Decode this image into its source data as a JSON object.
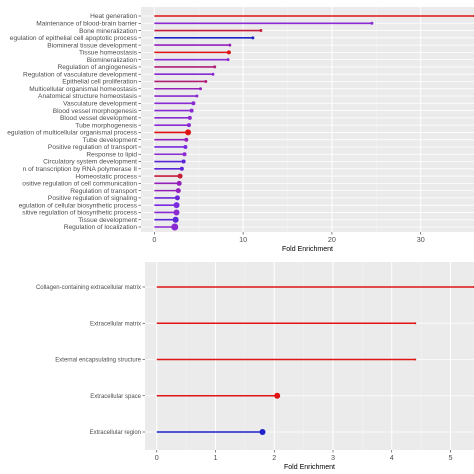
{
  "chart_data": [
    {
      "type": "lollipop",
      "xlabel": "Fold Enrichment",
      "xlim": [
        -1.5,
        36
      ],
      "xticks": [
        0,
        10,
        20,
        30
      ],
      "grid": true,
      "color_low": "#1f1fcc",
      "color_high": "#e01414",
      "categories": [
        "Heat generation",
        "Maintenance of blood-brain barrier",
        "Bone mineralization",
        "egulation of epithelial cell apoptotic process",
        "Biomineral tissue development",
        "Tissue homeostasis",
        "Biomineralization",
        "Regulation of angiogenesis",
        "Regulation of vasculature development",
        "Epithelial cell proliferation",
        "Multicellular organismal homeostasis",
        "Anatomical structure homeostasis",
        "Vasculature development",
        "Blood vessel morphogenesis",
        "Blood vessel development",
        "Tube morphogenesis",
        "egulation of multicellular organismal process",
        "Tube development",
        "Positive regulation of transport",
        "Response to lipid",
        "Circulatory system development",
        "n of transcription by RNA polymerase II",
        "Homeostatic process",
        "ositive regulation of cell communication",
        "Regulation of transport",
        "Positive regulation of signaling",
        "egulation of cellular biosynthetic process",
        "sitive regulation of biosynthetic process",
        "Tissue development",
        "Regulation of localization"
      ],
      "values": [
        36.5,
        24.5,
        12.0,
        11.1,
        8.5,
        8.4,
        8.3,
        6.8,
        6.6,
        5.8,
        5.2,
        4.8,
        4.4,
        4.2,
        4.0,
        3.9,
        3.8,
        3.6,
        3.5,
        3.4,
        3.3,
        3.1,
        2.9,
        2.8,
        2.7,
        2.6,
        2.5,
        2.5,
        2.4,
        2.3
      ],
      "point_colors": [
        "#e01414",
        "#8a2ad2",
        "#c81c3c",
        "#2020c8",
        "#9420bc",
        "#e01414",
        "#8a2ad2",
        "#b01e78",
        "#8a2ad2",
        "#b01e78",
        "#9420bc",
        "#8a2ad2",
        "#8a2ad2",
        "#8a2ad2",
        "#8a2ad2",
        "#8a2ad2",
        "#e01414",
        "#9420bc",
        "#7a2ae0",
        "#8a2ad2",
        "#5a24d8",
        "#5a24d8",
        "#c81c3c",
        "#9420bc",
        "#9420bc",
        "#6a26d8",
        "#7a2ae0",
        "#8a2ad2",
        "#5a24d8",
        "#8a2ad2"
      ],
      "point_sizes": [
        1,
        1.5,
        1.5,
        1.5,
        1.5,
        2,
        1.5,
        1.5,
        1.5,
        1.5,
        1.5,
        1.5,
        2,
        2,
        2,
        2,
        3,
        2,
        2,
        2,
        2,
        2,
        2.5,
        2.5,
        2.5,
        2.5,
        3,
        3,
        3,
        3.5
      ]
    },
    {
      "type": "lollipop",
      "xlabel": "Fold Enrichment",
      "xlim": [
        -0.2,
        5.4
      ],
      "xticks": [
        0,
        1,
        2,
        3,
        4,
        5
      ],
      "grid": true,
      "categories": [
        "Collagen-containing extracellular matrix",
        "Extracellular matrix",
        "External encapsulating structure",
        "Extracellular space",
        "Extracellular region"
      ],
      "values": [
        5.4,
        4.4,
        4.4,
        2.05,
        1.8
      ],
      "point_colors": [
        "#e01414",
        "#e01414",
        "#e01414",
        "#e01414",
        "#1f1fcc"
      ],
      "point_sizes": [
        1,
        1,
        1,
        3,
        3
      ]
    }
  ]
}
